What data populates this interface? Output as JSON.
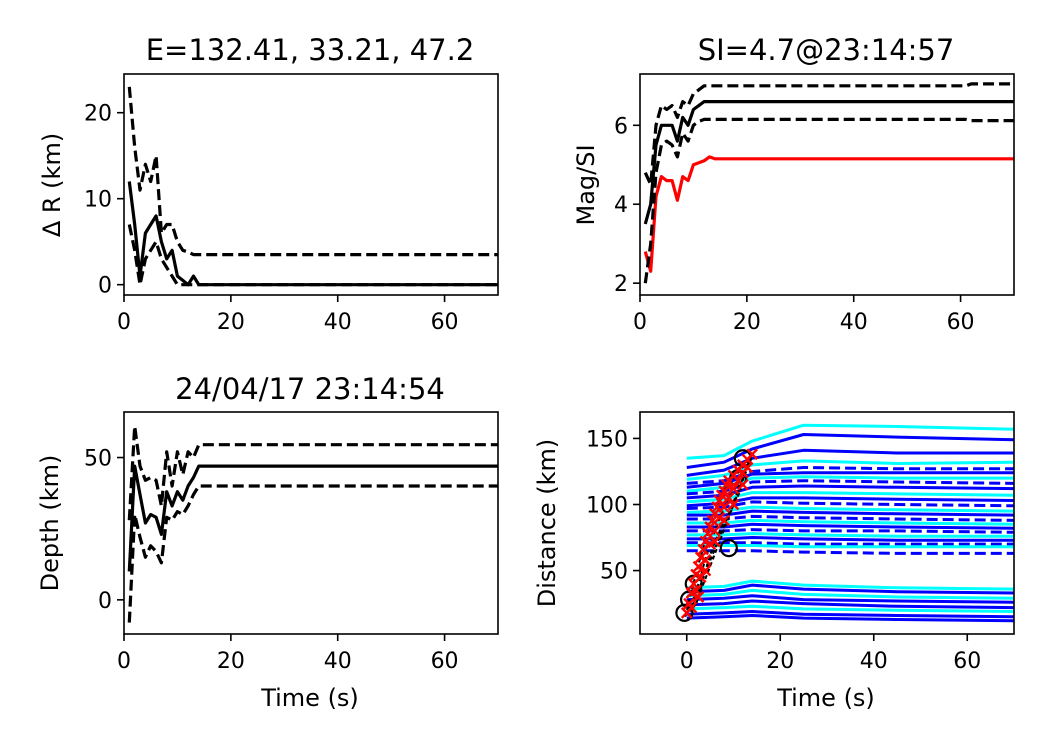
{
  "chart_data": [
    {
      "type": "line",
      "title": "E=132.41, 33.21, 47.2",
      "xlabel": "",
      "ylabel": "Δ R (km)",
      "xlim": [
        0,
        70
      ],
      "ylim": [
        -1.2,
        24.5
      ],
      "xticks": [
        0,
        20,
        40,
        60
      ],
      "yticks": [
        0,
        10,
        20
      ],
      "series": [
        {
          "style": "solid",
          "color": "#000000",
          "x": [
            1,
            2,
            3,
            4,
            5,
            6,
            7,
            8,
            9,
            10,
            11,
            12,
            13,
            14,
            70
          ],
          "y": [
            12,
            7,
            1,
            6,
            7,
            8,
            5,
            3,
            4,
            1,
            0.5,
            0,
            1,
            0,
            0
          ]
        },
        {
          "style": "dashed",
          "color": "#000000",
          "x": [
            1,
            2,
            3,
            4,
            5,
            6,
            7,
            8,
            9,
            10,
            11,
            12,
            13,
            14,
            70
          ],
          "y": [
            23,
            16,
            11,
            14,
            12,
            15,
            6,
            7,
            7,
            5,
            4,
            3.8,
            3.5,
            3.5,
            3.5
          ]
        },
        {
          "style": "dashed",
          "color": "#000000",
          "x": [
            1,
            2,
            3,
            4,
            5,
            6,
            7,
            8,
            9,
            10,
            11,
            12,
            13,
            14,
            70
          ],
          "y": [
            7,
            4,
            0,
            3,
            4,
            5,
            3,
            2,
            1,
            0,
            0,
            0,
            0,
            0,
            0
          ]
        }
      ]
    },
    {
      "type": "line",
      "title": "SI=4.7@23:14:57",
      "xlabel": "",
      "ylabel": "Mag/SI",
      "xlim": [
        0,
        70
      ],
      "ylim": [
        1.7,
        7.3
      ],
      "xticks": [
        0,
        20,
        40,
        60
      ],
      "yticks": [
        2,
        4,
        6
      ],
      "series": [
        {
          "style": "solid",
          "color": "#ff0000",
          "x": [
            1,
            2,
            3,
            4,
            5,
            6,
            7,
            8,
            9,
            10,
            11,
            12,
            13,
            14,
            70
          ],
          "y": [
            2.8,
            2.3,
            4.2,
            4.7,
            4.6,
            4.6,
            4.1,
            4.7,
            4.6,
            5.0,
            5.05,
            5.1,
            5.2,
            5.15,
            5.15
          ]
        },
        {
          "style": "solid",
          "color": "#000000",
          "x": [
            1,
            2,
            3,
            4,
            5,
            6,
            7,
            8,
            9,
            10,
            11,
            12,
            13,
            70
          ],
          "y": [
            3.5,
            4.0,
            5.5,
            6.0,
            6.0,
            6.0,
            5.6,
            6.2,
            6.0,
            6.4,
            6.5,
            6.6,
            6.6,
            6.6
          ]
        },
        {
          "style": "dashed",
          "color": "#000000",
          "x": [
            1,
            2,
            3,
            4,
            5,
            6,
            7,
            8,
            9,
            10,
            11,
            12,
            13,
            14,
            61,
            62,
            70
          ],
          "y": [
            4.8,
            4.5,
            6.0,
            6.5,
            6.4,
            6.5,
            6.2,
            6.6,
            6.5,
            6.8,
            6.9,
            7.0,
            7.0,
            7.0,
            7.0,
            7.05,
            7.05
          ]
        },
        {
          "style": "dashed",
          "color": "#000000",
          "x": [
            1,
            2,
            3,
            4,
            5,
            6,
            7,
            8,
            9,
            10,
            11,
            12,
            13,
            61,
            62,
            70
          ],
          "y": [
            2.0,
            3.0,
            4.8,
            5.5,
            5.6,
            5.5,
            5.2,
            5.8,
            5.6,
            6.0,
            6.1,
            6.15,
            6.15,
            6.15,
            6.12,
            6.12
          ]
        }
      ]
    },
    {
      "type": "line",
      "title": "24/04/17 23:14:54",
      "xlabel": "Time (s)",
      "ylabel": "Depth (km)",
      "xlim": [
        0,
        70
      ],
      "ylim": [
        -12,
        66
      ],
      "xticks": [
        0,
        20,
        40,
        60
      ],
      "yticks": [
        0,
        50
      ],
      "series": [
        {
          "style": "solid",
          "color": "#000000",
          "x": [
            1,
            2,
            3,
            4,
            5,
            6,
            7,
            8,
            9,
            10,
            11,
            12,
            13,
            14,
            70
          ],
          "y": [
            10,
            47,
            37,
            27,
            30,
            29,
            23,
            38,
            33,
            38,
            35,
            40,
            43,
            47,
            47
          ]
        },
        {
          "style": "dashed",
          "color": "#000000",
          "x": [
            1,
            2,
            3,
            4,
            5,
            6,
            7,
            8,
            9,
            10,
            11,
            12,
            13,
            14,
            70
          ],
          "y": [
            28,
            61,
            47,
            42,
            43,
            42,
            33,
            52,
            40,
            52,
            44,
            52,
            50,
            54.5,
            54.5
          ]
        },
        {
          "style": "dashed",
          "color": "#000000",
          "x": [
            1,
            2,
            3,
            4,
            5,
            6,
            7,
            8,
            9,
            10,
            11,
            12,
            13,
            14,
            70
          ],
          "y": [
            -8,
            30,
            22,
            15,
            19,
            17,
            13,
            29,
            28,
            31,
            30,
            33,
            37,
            40,
            40
          ]
        }
      ]
    },
    {
      "type": "line",
      "title": "",
      "xlabel": "Time (s)",
      "ylabel": "Distance (km)",
      "xlim": [
        -10,
        70
      ],
      "ylim": [
        2,
        170
      ],
      "xticks": [
        0,
        20,
        40,
        60
      ],
      "yticks": [
        50,
        100,
        150
      ],
      "trace_colors": [
        "#00ffff",
        "#0000ff"
      ],
      "marker_color": "#ff0000",
      "series": [
        {
          "color": "#00ffff",
          "style": "solid",
          "y": [
            135,
            137,
            148,
            160,
            159,
            157
          ]
        },
        {
          "color": "#0000ff",
          "style": "solid",
          "y": [
            128,
            132,
            142,
            153,
            151,
            149
          ]
        },
        {
          "color": "#0000ff",
          "style": "solid",
          "y": [
            122,
            126,
            135,
            141,
            139,
            139
          ]
        },
        {
          "color": "#00ffff",
          "style": "solid",
          "y": [
            119,
            122,
            130,
            133,
            131,
            132
          ]
        },
        {
          "color": "#0000ff",
          "style": "dashed",
          "y": [
            116,
            118,
            125,
            128,
            127,
            127
          ]
        },
        {
          "color": "#0000ff",
          "style": "solid",
          "y": [
            113,
            116,
            123,
            124,
            124,
            124
          ]
        },
        {
          "color": "#00ffff",
          "style": "solid",
          "y": [
            110,
            113,
            120,
            121,
            120,
            120
          ]
        },
        {
          "color": "#0000ff",
          "style": "dashed",
          "y": [
            108,
            110,
            117,
            118,
            117,
            116
          ]
        },
        {
          "color": "#0000ff",
          "style": "solid",
          "y": [
            105,
            107,
            113,
            114,
            113,
            112
          ]
        },
        {
          "color": "#00ffff",
          "style": "solid",
          "y": [
            102,
            104,
            109,
            109,
            108,
            107
          ]
        },
        {
          "color": "#0000ff",
          "style": "solid",
          "y": [
            99,
            101,
            105,
            105,
            104,
            103
          ]
        },
        {
          "color": "#0000ff",
          "style": "dashed",
          "y": [
            97,
            98,
            102,
            101,
            100,
            99
          ]
        },
        {
          "color": "#00ffff",
          "style": "solid",
          "y": [
            94,
            95,
            98,
            97,
            96,
            95
          ]
        },
        {
          "color": "#0000ff",
          "style": "solid",
          "y": [
            92,
            92,
            95,
            94,
            93,
            92
          ]
        },
        {
          "color": "#0000ff",
          "style": "dashed",
          "y": [
            89,
            89,
            91,
            90,
            89,
            88
          ]
        },
        {
          "color": "#00ffff",
          "style": "solid",
          "y": [
            86,
            86,
            88,
            87,
            86,
            85
          ]
        },
        {
          "color": "#0000ff",
          "style": "solid",
          "y": [
            83,
            83,
            85,
            84,
            83,
            82
          ]
        },
        {
          "color": "#0000ff",
          "style": "dashed",
          "y": [
            80,
            80,
            81,
            80,
            80,
            79
          ]
        },
        {
          "color": "#00ffff",
          "style": "solid",
          "y": [
            77,
            77,
            78,
            77,
            76,
            76
          ]
        },
        {
          "color": "#0000ff",
          "style": "solid",
          "y": [
            74,
            74,
            75,
            74,
            73,
            73
          ]
        },
        {
          "color": "#0000ff",
          "style": "dashed",
          "y": [
            71,
            71,
            71,
            70,
            70,
            70
          ]
        },
        {
          "color": "#00ffff",
          "style": "solid",
          "y": [
            69,
            69,
            69,
            68,
            68,
            68
          ]
        },
        {
          "color": "#0000ff",
          "style": "dashed",
          "y": [
            65,
            65,
            65,
            64,
            63,
            63
          ]
        },
        {
          "color": "#00ffff",
          "style": "solid",
          "y": [
            37,
            38,
            42,
            39,
            37,
            36
          ]
        },
        {
          "color": "#0000ff",
          "style": "solid",
          "y": [
            34,
            35,
            39,
            36,
            34,
            33
          ]
        },
        {
          "color": "#00ffff",
          "style": "solid",
          "y": [
            31,
            32,
            35,
            32,
            30,
            29
          ]
        },
        {
          "color": "#0000ff",
          "style": "solid",
          "y": [
            28,
            29,
            31,
            28,
            27,
            26
          ]
        },
        {
          "color": "#0000ff",
          "style": "solid",
          "y": [
            24,
            25,
            27,
            25,
            23,
            22
          ]
        },
        {
          "color": "#00ffff",
          "style": "solid",
          "y": [
            21,
            22,
            23,
            21,
            20,
            19
          ]
        },
        {
          "color": "#0000ff",
          "style": "solid",
          "y": [
            17,
            18,
            19,
            17,
            16,
            15
          ]
        },
        {
          "color": "#0000ff",
          "style": "solid",
          "y": [
            14,
            15,
            16,
            14,
            13,
            12
          ]
        }
      ],
      "series_x": [
        0,
        8,
        14,
        25,
        45,
        70
      ],
      "picks": [
        {
          "x": 0,
          "y": 18
        },
        {
          "x": 0.5,
          "y": 25
        },
        {
          "x": 1,
          "y": 33
        },
        {
          "x": 1.5,
          "y": 40
        },
        {
          "x": 2,
          "y": 47
        },
        {
          "x": 2.5,
          "y": 53
        },
        {
          "x": 3,
          "y": 60
        },
        {
          "x": 3.5,
          "y": 66
        },
        {
          "x": 4,
          "y": 72
        },
        {
          "x": 4.5,
          "y": 78
        },
        {
          "x": 5,
          "y": 83
        },
        {
          "x": 5.5,
          "y": 88
        },
        {
          "x": 6,
          "y": 93
        },
        {
          "x": 6.5,
          "y": 98
        },
        {
          "x": 7,
          "y": 103
        },
        {
          "x": 7.5,
          "y": 107
        },
        {
          "x": 8,
          "y": 110
        },
        {
          "x": 8.5,
          "y": 115
        },
        {
          "x": 9,
          "y": 118
        },
        {
          "x": 10,
          "y": 122
        },
        {
          "x": 11,
          "y": 126
        },
        {
          "x": 12,
          "y": 130
        },
        {
          "x": 13,
          "y": 134
        },
        {
          "x": 14,
          "y": 138
        },
        {
          "x": 1,
          "y": 22
        },
        {
          "x": 2,
          "y": 35
        },
        {
          "x": 3,
          "y": 45
        },
        {
          "x": 4,
          "y": 58
        },
        {
          "x": 5,
          "y": 70
        },
        {
          "x": 6,
          "y": 80
        },
        {
          "x": 7,
          "y": 90
        },
        {
          "x": 8,
          "y": 98
        },
        {
          "x": 9,
          "y": 105
        },
        {
          "x": 10,
          "y": 112
        },
        {
          "x": 11,
          "y": 118
        },
        {
          "x": 12,
          "y": 124
        },
        {
          "x": 13,
          "y": 128
        },
        {
          "x": 2.5,
          "y": 30
        },
        {
          "x": 4,
          "y": 50
        },
        {
          "x": 6,
          "y": 72
        },
        {
          "x": 8,
          "y": 88
        },
        {
          "x": 10,
          "y": 100
        },
        {
          "x": 12,
          "y": 115
        }
      ],
      "circles": [
        {
          "x": -0.5,
          "y": 18
        },
        {
          "x": 0.5,
          "y": 28
        },
        {
          "x": 1.5,
          "y": 40
        },
        {
          "x": 9,
          "y": 67
        },
        {
          "x": 12,
          "y": 135
        },
        {
          "x": 11,
          "y": 120
        }
      ]
    }
  ]
}
